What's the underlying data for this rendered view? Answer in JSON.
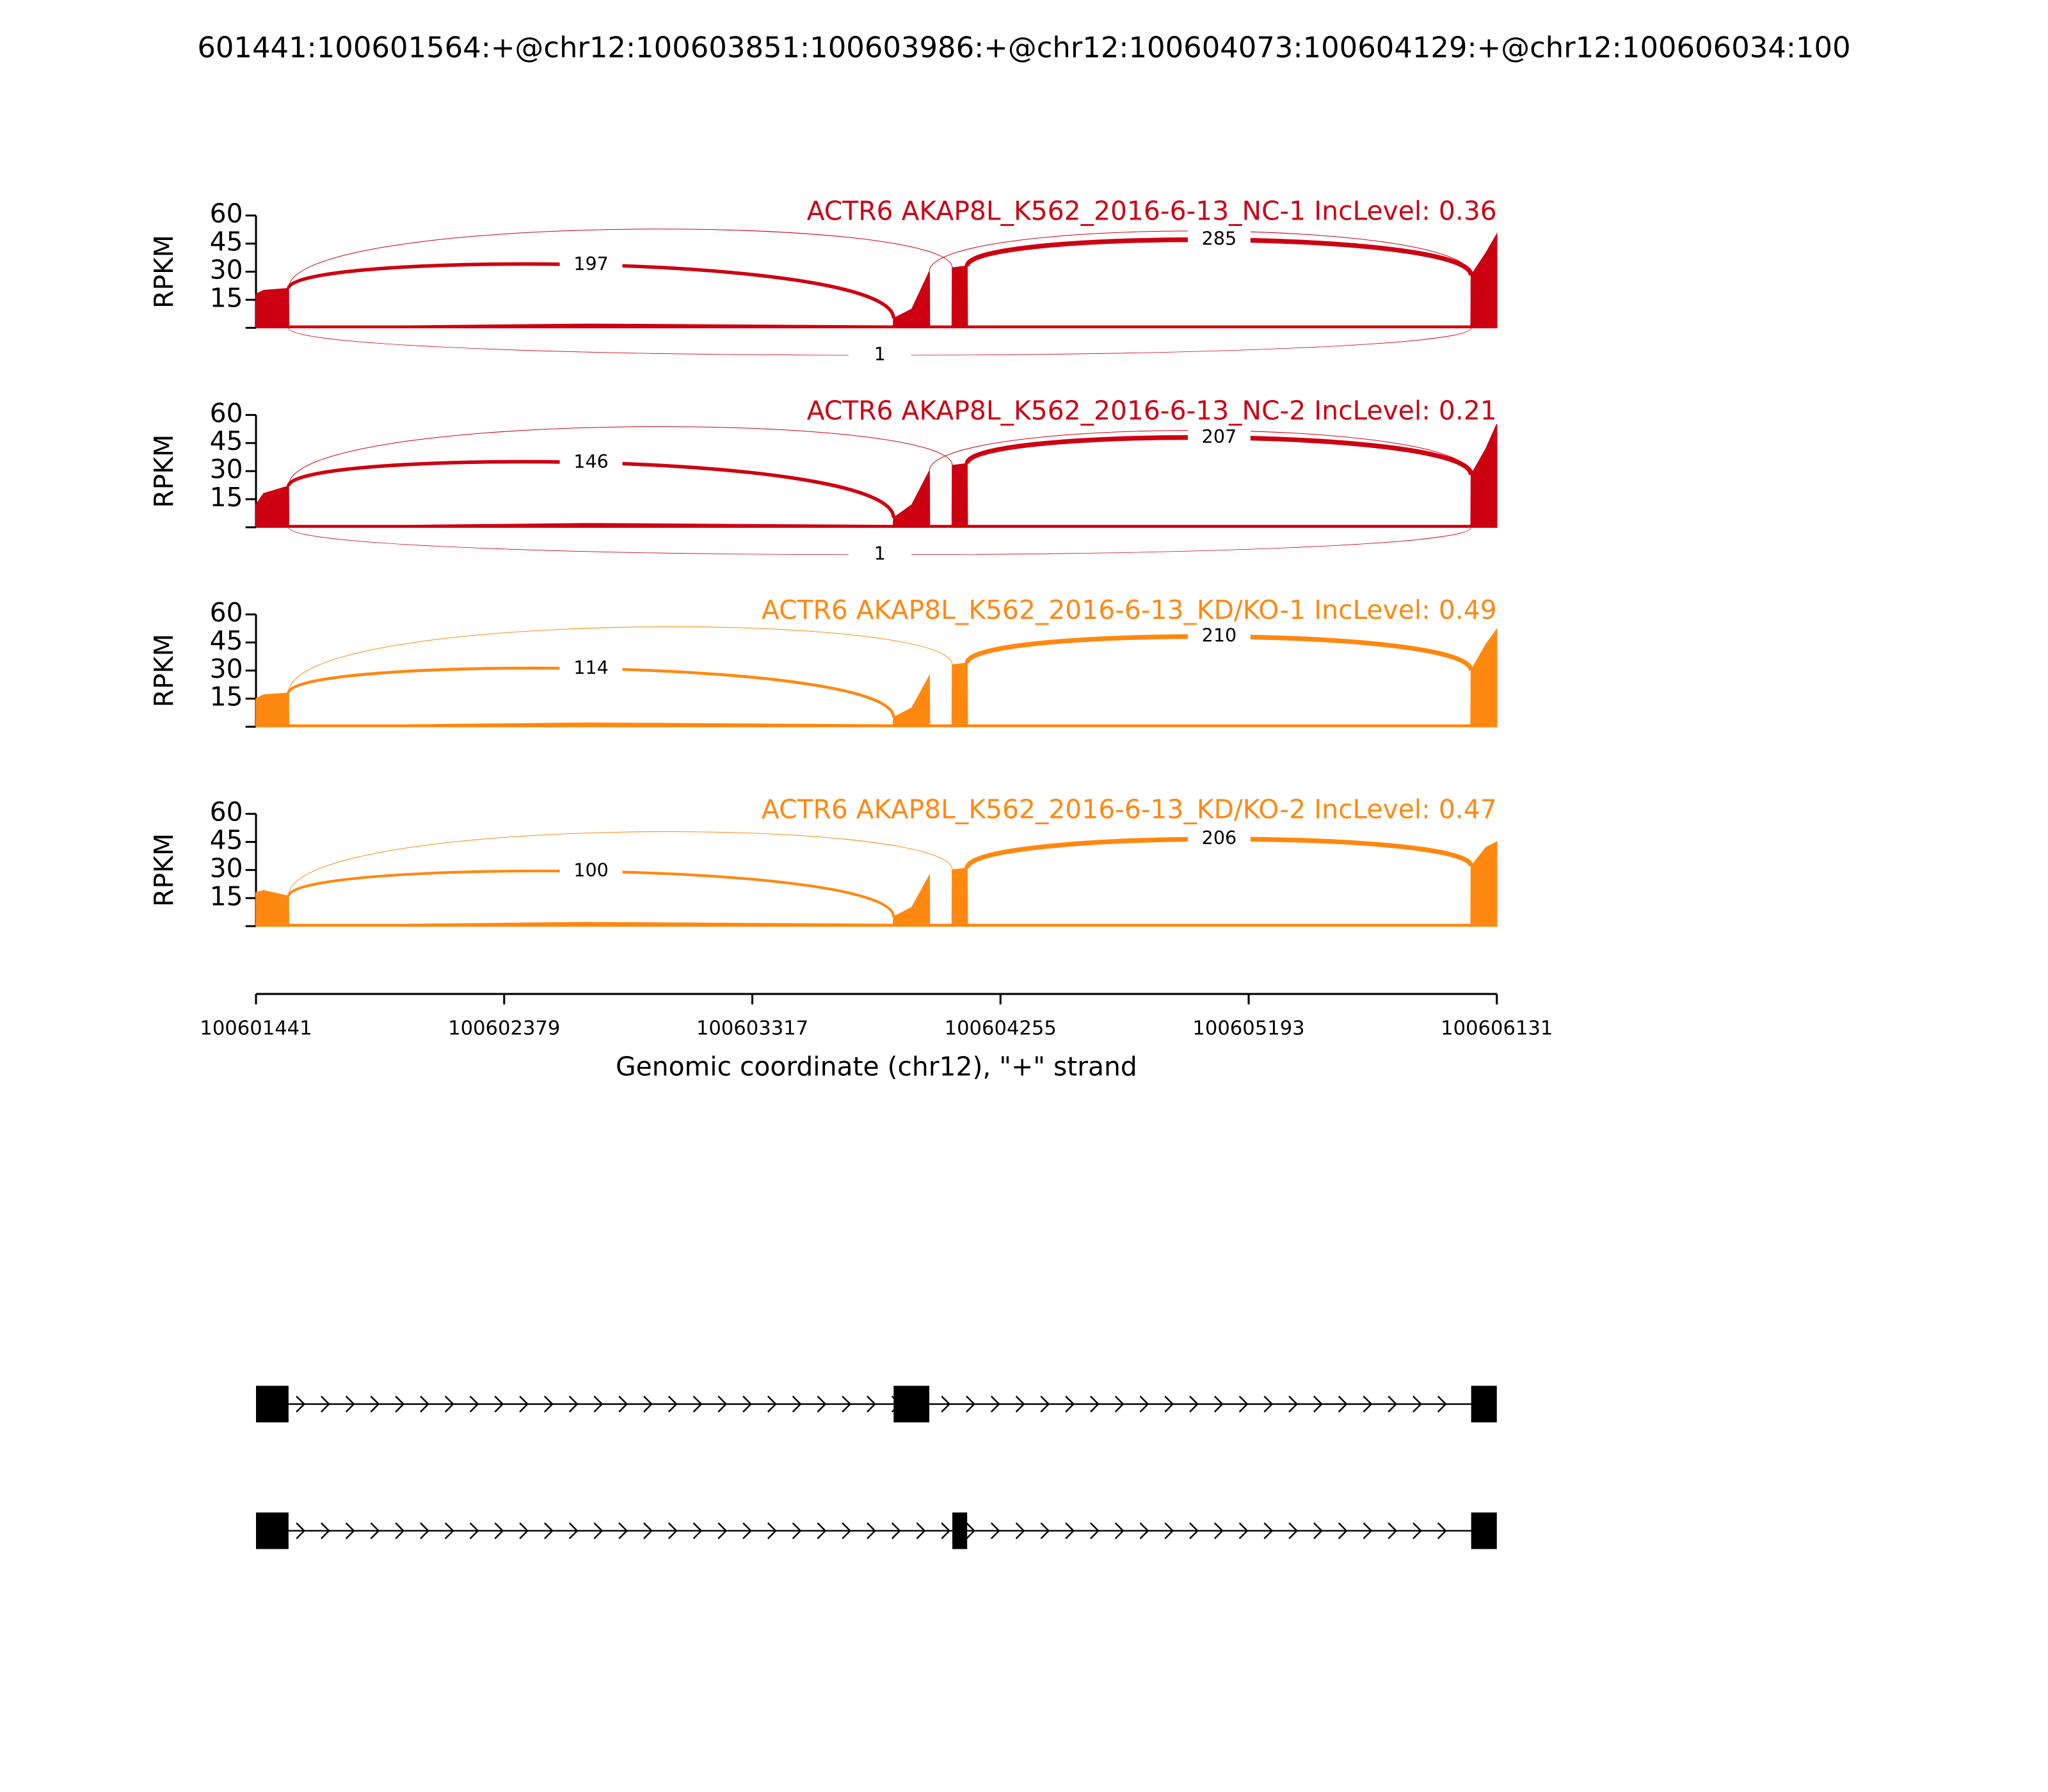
{
  "title": "601441:100601564:+@chr12:100603851:100603986:+@chr12:100604073:100604129:+@chr12:100606034:100",
  "chart_data": [
    {
      "type": "sashimi",
      "title": "ACTR6 AKAP8L_K562_2016-6-13_NC-1 IncLevel: 0.36",
      "color": "#cc0011",
      "ylabel": "RPKM",
      "ylim": [
        0,
        60
      ],
      "yticks": [
        15,
        30,
        45,
        60
      ],
      "xlim": [
        100601441,
        100606131
      ],
      "coverage": {
        "x": [
          100601441,
          100601470,
          100601564,
          100601565,
          100602000,
          100602700,
          100603850,
          100603851,
          100603920,
          100603986,
          100603987,
          100604072,
          100604073,
          100604129,
          100604130,
          100605000,
          100606033,
          100606034,
          100606090,
          100606131
        ],
        "values": [
          18,
          20,
          21,
          1,
          1,
          2,
          1,
          5,
          10,
          30,
          1,
          1,
          32,
          33,
          1,
          1,
          1,
          28,
          40,
          50
        ]
      },
      "junctions": [
        {
          "start": 100601564,
          "end": 100603851,
          "count": 197,
          "side": "above"
        },
        {
          "start": 100601564,
          "end": 100604073,
          "count": null,
          "side": "above"
        },
        {
          "start": 100603986,
          "end": 100606034,
          "count": null,
          "side": "above"
        },
        {
          "start": 100604129,
          "end": 100606034,
          "count": 285,
          "side": "above"
        },
        {
          "start": 100601564,
          "end": 100606034,
          "count": 1,
          "side": "below"
        }
      ]
    },
    {
      "type": "sashimi",
      "title": "ACTR6 AKAP8L_K562_2016-6-13_NC-2 IncLevel: 0.21",
      "color": "#cc0011",
      "ylabel": "RPKM",
      "ylim": [
        0,
        60
      ],
      "yticks": [
        15,
        30,
        45,
        60
      ],
      "xlim": [
        100601441,
        100606131
      ],
      "coverage": {
        "x": [
          100601441,
          100601470,
          100601564,
          100601565,
          100602000,
          100602700,
          100603850,
          100603851,
          100603920,
          100603986,
          100603987,
          100604072,
          100604073,
          100604129,
          100604130,
          100605000,
          100606033,
          100606034,
          100606090,
          100606131
        ],
        "values": [
          12,
          18,
          22,
          1,
          1,
          2,
          1,
          5,
          12,
          30,
          1,
          1,
          33,
          34,
          1,
          1,
          1,
          28,
          42,
          55
        ]
      },
      "junctions": [
        {
          "start": 100601564,
          "end": 100603851,
          "count": 146,
          "side": "above"
        },
        {
          "start": 100601564,
          "end": 100604073,
          "count": null,
          "side": "above"
        },
        {
          "start": 100603986,
          "end": 100606034,
          "count": null,
          "side": "above"
        },
        {
          "start": 100604129,
          "end": 100606034,
          "count": 207,
          "side": "above"
        },
        {
          "start": 100601564,
          "end": 100606034,
          "count": 1,
          "side": "below"
        }
      ]
    },
    {
      "type": "sashimi",
      "title": "ACTR6 AKAP8L_K562_2016-6-13_KD/KO-1 IncLevel: 0.49",
      "color": "#ff8811",
      "ylabel": "RPKM",
      "ylim": [
        0,
        60
      ],
      "yticks": [
        15,
        30,
        45,
        60
      ],
      "xlim": [
        100601441,
        100606131
      ],
      "coverage": {
        "x": [
          100601441,
          100601470,
          100601564,
          100601565,
          100602000,
          100602700,
          100603850,
          100603851,
          100603920,
          100603986,
          100603987,
          100604072,
          100604073,
          100604129,
          100604130,
          100605000,
          100606033,
          100606034,
          100606090,
          100606131
        ],
        "values": [
          15,
          17,
          18,
          1,
          1,
          2,
          1,
          5,
          10,
          27,
          1,
          1,
          33,
          34,
          1,
          1,
          1,
          30,
          44,
          52
        ]
      },
      "junctions": [
        {
          "start": 100601564,
          "end": 100603851,
          "count": 114,
          "side": "above"
        },
        {
          "start": 100601564,
          "end": 100604073,
          "count": null,
          "side": "above"
        },
        {
          "start": 100604129,
          "end": 100606034,
          "count": 210,
          "side": "above"
        }
      ]
    },
    {
      "type": "sashimi",
      "title": "ACTR6 AKAP8L_K562_2016-6-13_KD/KO-2 IncLevel: 0.47",
      "color": "#ff8811",
      "ylabel": "RPKM",
      "ylim": [
        0,
        60
      ],
      "yticks": [
        15,
        30,
        45,
        60
      ],
      "xlim": [
        100601441,
        100606131
      ],
      "coverage": {
        "x": [
          100601441,
          100601470,
          100601564,
          100601565,
          100602000,
          100602700,
          100603850,
          100603851,
          100603920,
          100603986,
          100603987,
          100604072,
          100604073,
          100604129,
          100604130,
          100605000,
          100606033,
          100606034,
          100606090,
          100606131
        ],
        "values": [
          18,
          19,
          16,
          1,
          1,
          2,
          1,
          5,
          10,
          27,
          1,
          1,
          30,
          31,
          1,
          1,
          1,
          32,
          42,
          45
        ]
      },
      "junctions": [
        {
          "start": 100601564,
          "end": 100603851,
          "count": 100,
          "side": "above"
        },
        {
          "start": 100601564,
          "end": 100604073,
          "count": null,
          "side": "above"
        },
        {
          "start": 100604129,
          "end": 100606034,
          "count": 206,
          "side": "above"
        }
      ]
    }
  ],
  "x_axis": {
    "xlim": [
      100601441,
      100606131
    ],
    "xticks": [
      100601441,
      100602379,
      100603317,
      100604255,
      100605193,
      100606131
    ],
    "xlabel": "Genomic coordinate (chr12), \"+\" strand"
  },
  "transcripts": [
    {
      "exons": [
        [
          100601441,
          100601564
        ],
        [
          100603851,
          100603986
        ],
        [
          100606034,
          100606131
        ]
      ]
    },
    {
      "exons": [
        [
          100601441,
          100601564
        ],
        [
          100604073,
          100604129
        ],
        [
          100606034,
          100606131
        ]
      ]
    }
  ]
}
